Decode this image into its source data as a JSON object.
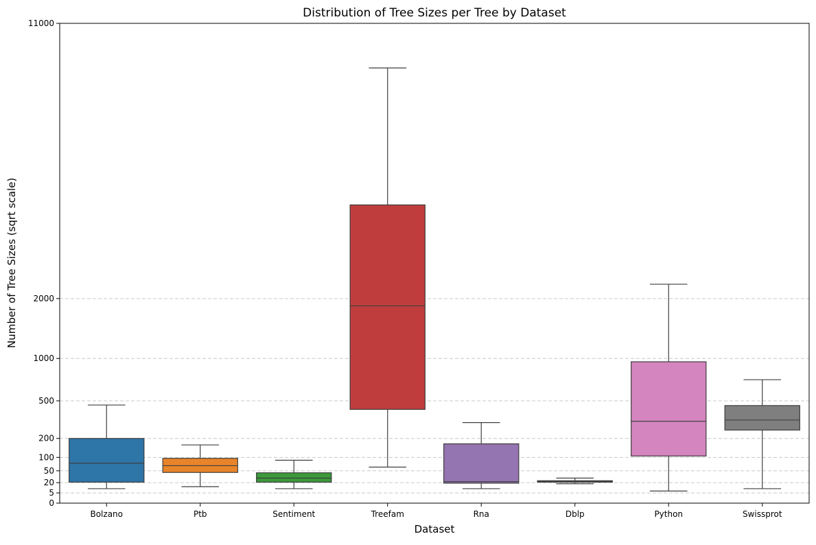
{
  "chart_data": {
    "type": "box",
    "title": "Distribution of Tree Sizes per Tree by Dataset",
    "xlabel": "Dataset",
    "ylabel": "Number of Tree Sizes (sqrt scale)",
    "y_scale": "sqrt",
    "ylim": [
      0,
      11000
    ],
    "y_ticks": [
      0,
      5,
      20,
      50,
      100,
      200,
      500,
      1000,
      2000,
      11000
    ],
    "y_tick_labels": [
      "0",
      "5",
      "20",
      "50",
      "100",
      "200",
      "500",
      "1000",
      "2000",
      "11000"
    ],
    "grid": {
      "axis": "y",
      "style": "dashed",
      "lines_at": [
        5,
        20,
        50,
        100,
        200,
        500,
        1000,
        2000
      ]
    },
    "categories": [
      "Bolzano",
      "Ptb",
      "Sentiment",
      "Treefam",
      "Rna",
      "Dblp",
      "Python",
      "Swissprot"
    ],
    "boxes": [
      {
        "category": "Bolzano",
        "whisker_low": 10,
        "q1": 21,
        "median": 76,
        "q3": 200,
        "whisker_high": 460,
        "color": "#2e75a8"
      },
      {
        "category": "Ptb",
        "whisker_low": 13,
        "q1": 45,
        "median": 67,
        "q3": 96,
        "whisker_high": 162,
        "color": "#e8842a"
      },
      {
        "category": "Sentiment",
        "whisker_low": 10,
        "q1": 21,
        "median": 30,
        "q3": 44,
        "whisker_high": 88,
        "color": "#3a9a3a"
      },
      {
        "category": "Treefam",
        "whisker_low": 62,
        "q1": 420,
        "median": 1860,
        "q3": 4250,
        "whisker_high": 9050,
        "color": "#c03d3e"
      },
      {
        "category": "Rna",
        "whisker_low": 10,
        "q1": 19,
        "median": 22,
        "q3": 168,
        "whisker_high": 310,
        "color": "#9474b1"
      },
      {
        "category": "Dblp",
        "whisker_low": 18,
        "q1": 21,
        "median": 22,
        "q3": 24,
        "whisker_high": 30,
        "color": "#8b564c"
      },
      {
        "category": "Python",
        "whisker_low": 7,
        "q1": 106,
        "median": 320,
        "q3": 955,
        "whisker_high": 2290,
        "color": "#d484be"
      },
      {
        "category": "Swissprot",
        "whisker_low": 10,
        "q1": 255,
        "median": 330,
        "q3": 455,
        "whisker_high": 728,
        "color": "#7f7f7f"
      }
    ]
  }
}
